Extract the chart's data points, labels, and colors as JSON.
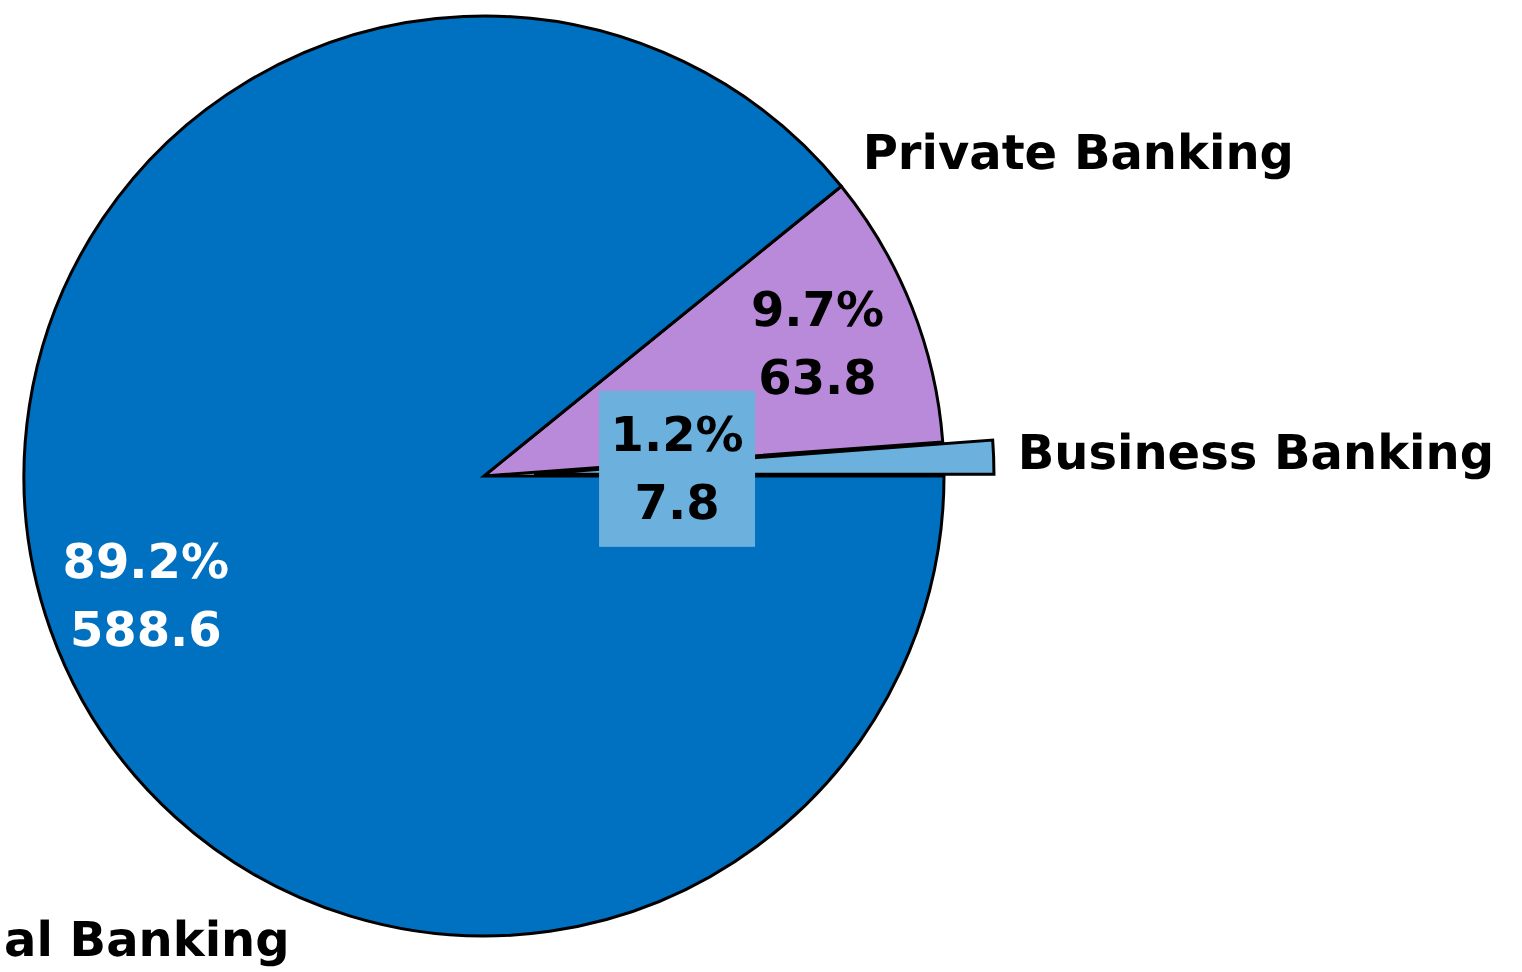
{
  "chart_data": {
    "type": "pie",
    "categories": [
      "Business Banking",
      "Private Banking",
      "al Banking"
    ],
    "values": [
      7.8,
      63.8,
      588.6
    ],
    "colors": [
      "#6cb0de",
      "#b98ad9",
      "#0070c0"
    ],
    "value_labels": [
      "1.2%\n7.8",
      "9.7%\n63.8",
      "89.2%\n588.6"
    ]
  }
}
